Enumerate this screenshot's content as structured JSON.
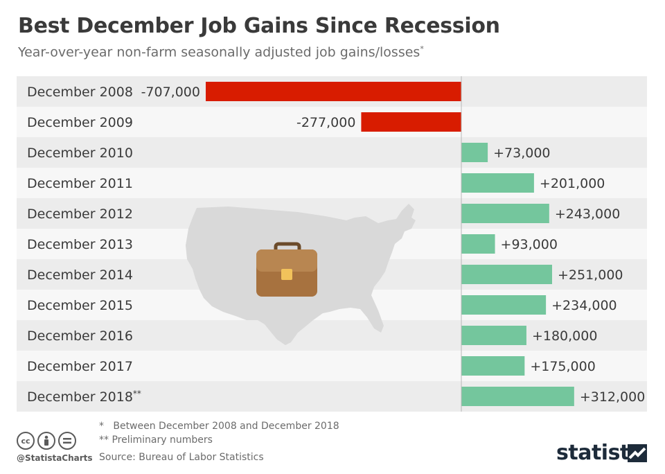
{
  "header": {
    "title": "Best December Job Gains Since Recession",
    "subtitle": "Year-over-year non-farm seasonally adjusted job gains/losses",
    "subtitle_mark": "*"
  },
  "chart_data": {
    "type": "bar",
    "orientation": "horizontal",
    "categories": [
      "December 2008",
      "December 2009",
      "December 2010",
      "December 2011",
      "December 2012",
      "December 2013",
      "December 2014",
      "December 2015",
      "December 2016",
      "December 2017",
      "December 2018"
    ],
    "category_marks": [
      "",
      "",
      "",
      "",
      "",
      "",
      "",
      "",
      "",
      "",
      "**"
    ],
    "values": [
      -707000,
      -277000,
      73000,
      201000,
      243000,
      93000,
      251000,
      234000,
      180000,
      175000,
      312000
    ],
    "value_labels": [
      "-707,000",
      "-277,000",
      "+73,000",
      "+201,000",
      "+243,000",
      "+93,000",
      "+251,000",
      "+234,000",
      "+180,000",
      "+175,000",
      "+312,000"
    ],
    "colors": {
      "negative": "#d81c00",
      "positive": "#74c69d",
      "row_alt": "#ececec",
      "row_base": "#f7f7f7",
      "axis": "#b8b8b8"
    },
    "title": "Best December Job Gains Since Recession",
    "xlabel": "",
    "ylabel": "",
    "xlim": [
      -707000,
      312000
    ],
    "grid": false,
    "background_illustration": "us-map-with-briefcase"
  },
  "footnotes": [
    "*   Between December 2008 and December 2018",
    "** Preliminary numbers"
  ],
  "source": "Source: Bureau of Labor Statistics",
  "handle": "@StatistaCharts",
  "brand": "statista",
  "license_icons": [
    "cc-icon",
    "by-icon",
    "equals-icon"
  ]
}
